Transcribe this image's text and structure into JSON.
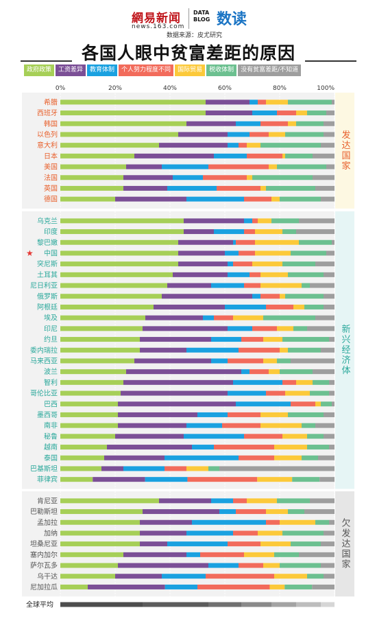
{
  "header": {
    "logo_netease": "網易新闻",
    "logo_url": "news.163.com",
    "logo_datablog": "DATA BLOG",
    "logo_shudu": "数读",
    "source": "数据来源：皮尤研究"
  },
  "title": "各国人眼中贫富差距的原因",
  "legend": [
    {
      "label": "政府政策",
      "color": "#a6cf57"
    },
    {
      "label": "工资差异",
      "color": "#7b4f96"
    },
    {
      "label": "教育体制",
      "color": "#1aa1e0"
    },
    {
      "label": "个人努力程度不同",
      "color": "#f26b5b"
    },
    {
      "label": "国际贸易",
      "color": "#fcc93a"
    },
    {
      "label": "税收体制",
      "color": "#6cc090"
    },
    {
      "label": "没有贫富差距/不知道",
      "color": "#9e9e9e"
    }
  ],
  "chart_data": {
    "type": "bar",
    "stacked": true,
    "orientation": "horizontal",
    "xlim": [
      0,
      100
    ],
    "x_ticks": [
      "0%",
      "20%",
      "40%",
      "60%",
      "80%",
      "100%"
    ],
    "series_names": [
      "政府政策",
      "工资差异",
      "教育体制",
      "个人努力程度不同",
      "国际贸易",
      "税收体制",
      "没有贫富差距/不知道"
    ],
    "groups": [
      {
        "name": "发达国家",
        "color": "#e8602c",
        "bg": "#fdf8e2",
        "rows": [
          {
            "label": "希腊",
            "values": [
              53,
              16,
              3,
              3,
              8,
              16,
              1
            ]
          },
          {
            "label": "西班牙",
            "values": [
              53,
              17,
              9,
              7,
              4,
              7,
              3
            ]
          },
          {
            "label": "韩国",
            "values": [
              46,
              18,
              9,
              10,
              3,
              10,
              4
            ]
          },
          {
            "label": "以色列",
            "values": [
              43,
              18,
              8,
              7,
              6,
              14,
              4
            ]
          },
          {
            "label": "意大利",
            "values": [
              36,
              25,
              4,
              3,
              5,
              22,
              5
            ]
          },
          {
            "label": "日本",
            "values": [
              27,
              29,
              12,
              13,
              1,
              10,
              8
            ]
          },
          {
            "label": "美国",
            "values": [
              24,
              13,
              17,
              22,
              3,
              18,
              3
            ]
          },
          {
            "label": "法国",
            "values": [
              23,
              18,
              11,
              16,
              2,
              22,
              8
            ]
          },
          {
            "label": "英国",
            "values": [
              23,
              16,
              18,
              16,
              2,
              18,
              7
            ]
          },
          {
            "label": "德国",
            "values": [
              20,
              26,
              21,
              10,
              3,
              15,
              5
            ]
          }
        ]
      },
      {
        "name": "新兴经济体",
        "color": "#2aa89b",
        "bg": "#e6f5f5",
        "rows": [
          {
            "label": "乌克兰",
            "values": [
              45,
              22,
              3,
              2,
              5,
              10,
              13
            ]
          },
          {
            "label": "印度",
            "values": [
              45,
              11,
              11,
              4,
              10,
              5,
              14
            ]
          },
          {
            "label": "黎巴嫩",
            "values": [
              43,
              20,
              1,
              7,
              16,
              12,
              1
            ]
          },
          {
            "label": "中国",
            "values": [
              43,
              17,
              5,
              6,
              13,
              13,
              3
            ]
          },
          {
            "label": "突尼斯",
            "values": [
              43,
              18,
              2,
              7,
              11,
              12,
              7
            ]
          },
          {
            "label": "土耳其",
            "values": [
              41,
              20,
              8,
              4,
              10,
              13,
              4
            ]
          },
          {
            "label": "尼日利亚",
            "values": [
              39,
              16,
              12,
              6,
              15,
              3,
              9
            ]
          },
          {
            "label": "俄罗斯",
            "values": [
              37,
              33,
              3,
              7,
              2,
              14,
              4
            ]
          },
          {
            "label": "阿根廷",
            "values": [
              34,
              26,
              15,
              10,
              4,
              7,
              4
            ]
          },
          {
            "label": "埃及",
            "values": [
              31,
              21,
              4,
              7,
              11,
              19,
              7
            ]
          },
          {
            "label": "印尼",
            "values": [
              30,
              31,
              9,
              9,
              6,
              5,
              10
            ]
          },
          {
            "label": "约旦",
            "values": [
              29,
              26,
              11,
              8,
              7,
              17,
              2
            ]
          },
          {
            "label": "委内瑞拉",
            "values": [
              29,
              17,
              19,
              15,
              3,
              12,
              5
            ]
          },
          {
            "label": "马来西亚",
            "values": [
              27,
              28,
              6,
              13,
              5,
              5,
              16
            ]
          },
          {
            "label": "波兰",
            "values": [
              24,
              42,
              3,
              7,
              4,
              12,
              8
            ]
          },
          {
            "label": "智利",
            "values": [
              23,
              40,
              18,
              5,
              6,
              6,
              2
            ]
          },
          {
            "label": "哥伦比亚",
            "values": [
              22,
              39,
              14,
              7,
              9,
              7,
              2
            ]
          },
          {
            "label": "巴西",
            "values": [
              21,
              43,
              20,
              9,
              2,
              4,
              1
            ]
          },
          {
            "label": "墨西哥",
            "values": [
              21,
              29,
              11,
              12,
              10,
              13,
              4
            ]
          },
          {
            "label": "南非",
            "values": [
              21,
              25,
              13,
              14,
              15,
              5,
              7
            ]
          },
          {
            "label": "秘鲁",
            "values": [
              20,
              25,
              22,
              14,
              9,
              6,
              4
            ]
          },
          {
            "label": "越南",
            "values": [
              17,
              31,
              8,
              22,
              12,
              8,
              2
            ]
          },
          {
            "label": "泰国",
            "values": [
              16,
              22,
              27,
              13,
              10,
              6,
              6
            ]
          },
          {
            "label": "巴基斯坦",
            "values": [
              15,
              8,
              15,
              8,
              8,
              4,
              42
            ]
          },
          {
            "label": "菲律宾",
            "values": [
              13,
              21,
              17,
              28,
              14,
              11,
              6
            ]
          }
        ]
      },
      {
        "name": "欠发达国家",
        "color": "#555555",
        "bg": "#e6e6e6",
        "rows": [
          {
            "label": "肯尼亚",
            "values": [
              36,
              19,
              8,
              5,
              11,
              12,
              9
            ]
          },
          {
            "label": "巴勒斯坦",
            "values": [
              30,
              28,
              6,
              11,
              8,
              6,
              11
            ]
          },
          {
            "label": "孟加拉",
            "values": [
              29,
              19,
              27,
              5,
              13,
              5,
              2
            ]
          },
          {
            "label": "加纳",
            "values": [
              29,
              17,
              17,
              9,
              9,
              15,
              4
            ]
          },
          {
            "label": "坦桑尼亚",
            "values": [
              29,
              10,
              22,
              12,
              11,
              11,
              5
            ]
          },
          {
            "label": "塞内加尔",
            "values": [
              23,
              23,
              5,
              16,
              11,
              9,
              13
            ]
          },
          {
            "label": "萨尔瓦多",
            "values": [
              21,
              33,
              11,
              9,
              6,
              15,
              5
            ]
          },
          {
            "label": "乌干达",
            "values": [
              20,
              17,
              16,
              25,
              12,
              6,
              4
            ]
          },
          {
            "label": "尼加拉瓜",
            "values": [
              11,
              31,
              13,
              29,
              6,
              11,
              9
            ]
          }
        ]
      }
    ],
    "average": {
      "label": "全球平均",
      "segment_colors": [
        "#4d4d4d",
        "#5c5c5c",
        "#707070",
        "#8a8a8a",
        "#a3a3a3",
        "#bdbdbd",
        "#d6d6d6"
      ],
      "values": [
        30,
        24,
        12,
        11,
        9,
        9,
        5
      ]
    }
  }
}
